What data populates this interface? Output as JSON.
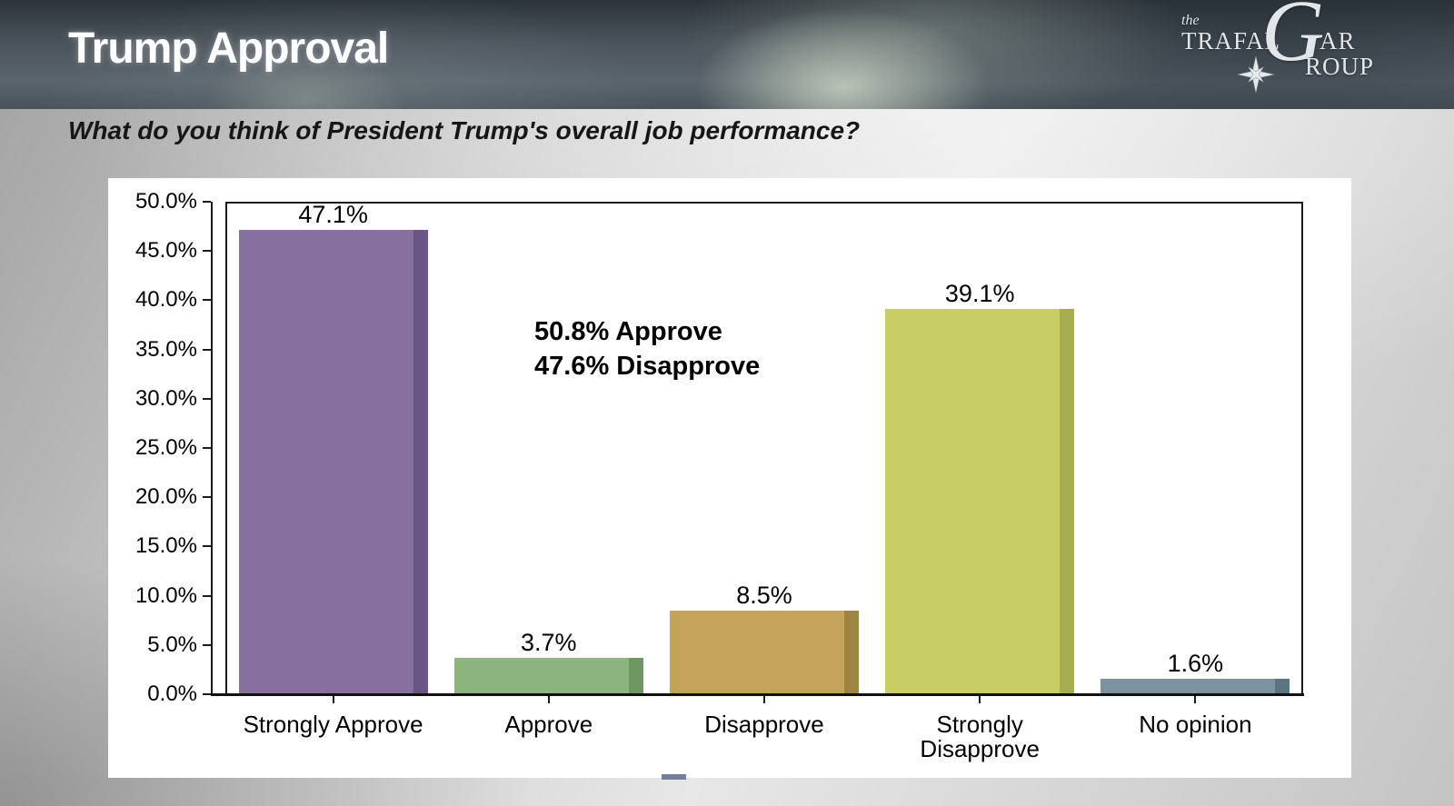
{
  "slide": {
    "title": "Trump Approval",
    "question": "What do you think of President Trump's overall job performance?"
  },
  "logo": {
    "the": "the",
    "part1": "TRAFAL",
    "g": "G",
    "part2": "AR",
    "part3": "ROUP",
    "star_icon": "compass-star-icon",
    "color": "#e3e6e9"
  },
  "chart_data": {
    "type": "bar",
    "title": "",
    "xlabel": "",
    "ylabel": "",
    "categories": [
      "Strongly Approve",
      "Approve",
      "Disapprove",
      "Strongly Disapprove",
      "No opinion"
    ],
    "category_lines": [
      [
        "Strongly Approve"
      ],
      [
        "Approve"
      ],
      [
        "Disapprove"
      ],
      [
        "Strongly",
        "Disapprove"
      ],
      [
        "No opinion"
      ]
    ],
    "values": [
      47.1,
      3.7,
      8.5,
      39.1,
      1.6
    ],
    "value_labels": [
      "47.1%",
      "3.7%",
      "8.5%",
      "39.1%",
      "1.6%"
    ],
    "bar_colors": [
      "#85709f",
      "#8bb47e",
      "#c3a45a",
      "#c9cd66",
      "#7d93a1"
    ],
    "bar_side_colors": [
      "#6a5685",
      "#6e9763",
      "#9d8443",
      "#a7ac50",
      "#5b7482"
    ],
    "ylim": [
      0,
      50
    ],
    "y_ticks": [
      "50.0%",
      "45.0%",
      "40.0%",
      "35.0%",
      "30.0%",
      "25.0%",
      "20.0%",
      "15.0%",
      "10.0%",
      "5.0%",
      "0.0%"
    ],
    "grid": false,
    "legend": false,
    "annotation": {
      "line1": "50.8% Approve",
      "line2": "47.6% Disapprove"
    }
  }
}
